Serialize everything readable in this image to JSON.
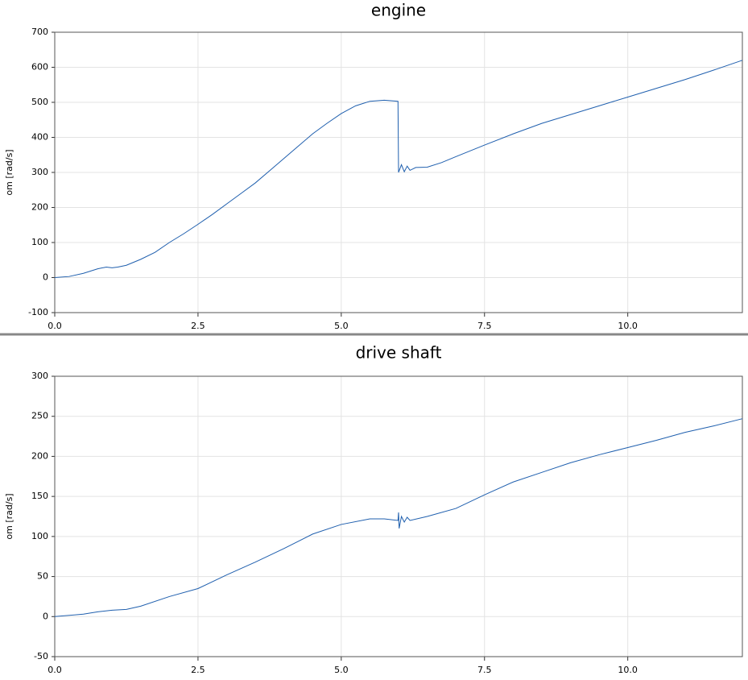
{
  "chart_data": [
    {
      "type": "line",
      "title": "engine",
      "y_label": "om [rad/s]",
      "x": [
        0,
        0.25,
        0.5,
        0.75,
        0.9,
        1.0,
        1.1,
        1.25,
        1.5,
        1.75,
        2.0,
        2.25,
        2.5,
        2.75,
        3.0,
        3.25,
        3.5,
        3.75,
        4.0,
        4.25,
        4.5,
        4.75,
        5.0,
        5.25,
        5.5,
        5.75,
        5.99,
        6.0,
        6.05,
        6.1,
        6.15,
        6.2,
        6.3,
        6.5,
        6.75,
        7.0,
        7.5,
        8.0,
        8.5,
        9.0,
        9.5,
        10.0,
        10.5,
        11.0,
        11.5,
        12.0
      ],
      "series": [
        {
          "name": "om",
          "color": "#1f5fae",
          "values": [
            0,
            3,
            12,
            25,
            30,
            28,
            30,
            35,
            52,
            72,
            100,
            125,
            152,
            180,
            210,
            240,
            270,
            305,
            340,
            375,
            410,
            440,
            468,
            490,
            503,
            506,
            503,
            300,
            322,
            302,
            318,
            306,
            314,
            315,
            328,
            345,
            378,
            410,
            440,
            465,
            490,
            515,
            540,
            565,
            592,
            620
          ]
        }
      ],
      "xlim": [
        0,
        12
      ],
      "ylim": [
        -100,
        700
      ],
      "xticks": [
        {
          "value": 0,
          "label": "0.0"
        },
        {
          "value": 2.5,
          "label": "2.5"
        },
        {
          "value": 5,
          "label": "5.0"
        },
        {
          "value": 7.5,
          "label": "7.5"
        },
        {
          "value": 10,
          "label": "10.0"
        }
      ],
      "yticks": [
        -100,
        0,
        100,
        200,
        300,
        400,
        500,
        600,
        700
      ],
      "grid": true
    },
    {
      "type": "line",
      "title": "drive shaft",
      "y_label": "om [rad/s]",
      "x": [
        0,
        0.5,
        0.75,
        1.0,
        1.25,
        1.5,
        2.0,
        2.5,
        3.0,
        3.5,
        4.0,
        4.5,
        5.0,
        5.5,
        5.75,
        5.99,
        6.0,
        6.01,
        6.05,
        6.1,
        6.15,
        6.2,
        6.5,
        7.0,
        7.5,
        8.0,
        8.5,
        9.0,
        9.5,
        10.0,
        10.5,
        11.0,
        11.5,
        12.0
      ],
      "series": [
        {
          "name": "om",
          "color": "#1f5fae",
          "values": [
            0,
            3,
            6,
            8,
            9,
            13,
            25,
            35,
            52,
            68,
            85,
            103,
            115,
            122,
            122,
            120,
            130,
            110,
            125,
            118,
            124,
            120,
            125,
            135,
            152,
            168,
            180,
            192,
            202,
            211,
            220,
            230,
            238,
            247
          ]
        }
      ],
      "xlim": [
        0,
        12
      ],
      "ylim": [
        -50,
        300
      ],
      "xticks": [
        {
          "value": 0,
          "label": "0.0"
        },
        {
          "value": 2.5,
          "label": "2.5"
        },
        {
          "value": 5,
          "label": "5.0"
        },
        {
          "value": 7.5,
          "label": "7.5"
        },
        {
          "value": 10,
          "label": "10.0"
        }
      ],
      "yticks": [
        -50,
        0,
        50,
        100,
        150,
        200,
        250,
        300
      ],
      "grid": true
    }
  ]
}
